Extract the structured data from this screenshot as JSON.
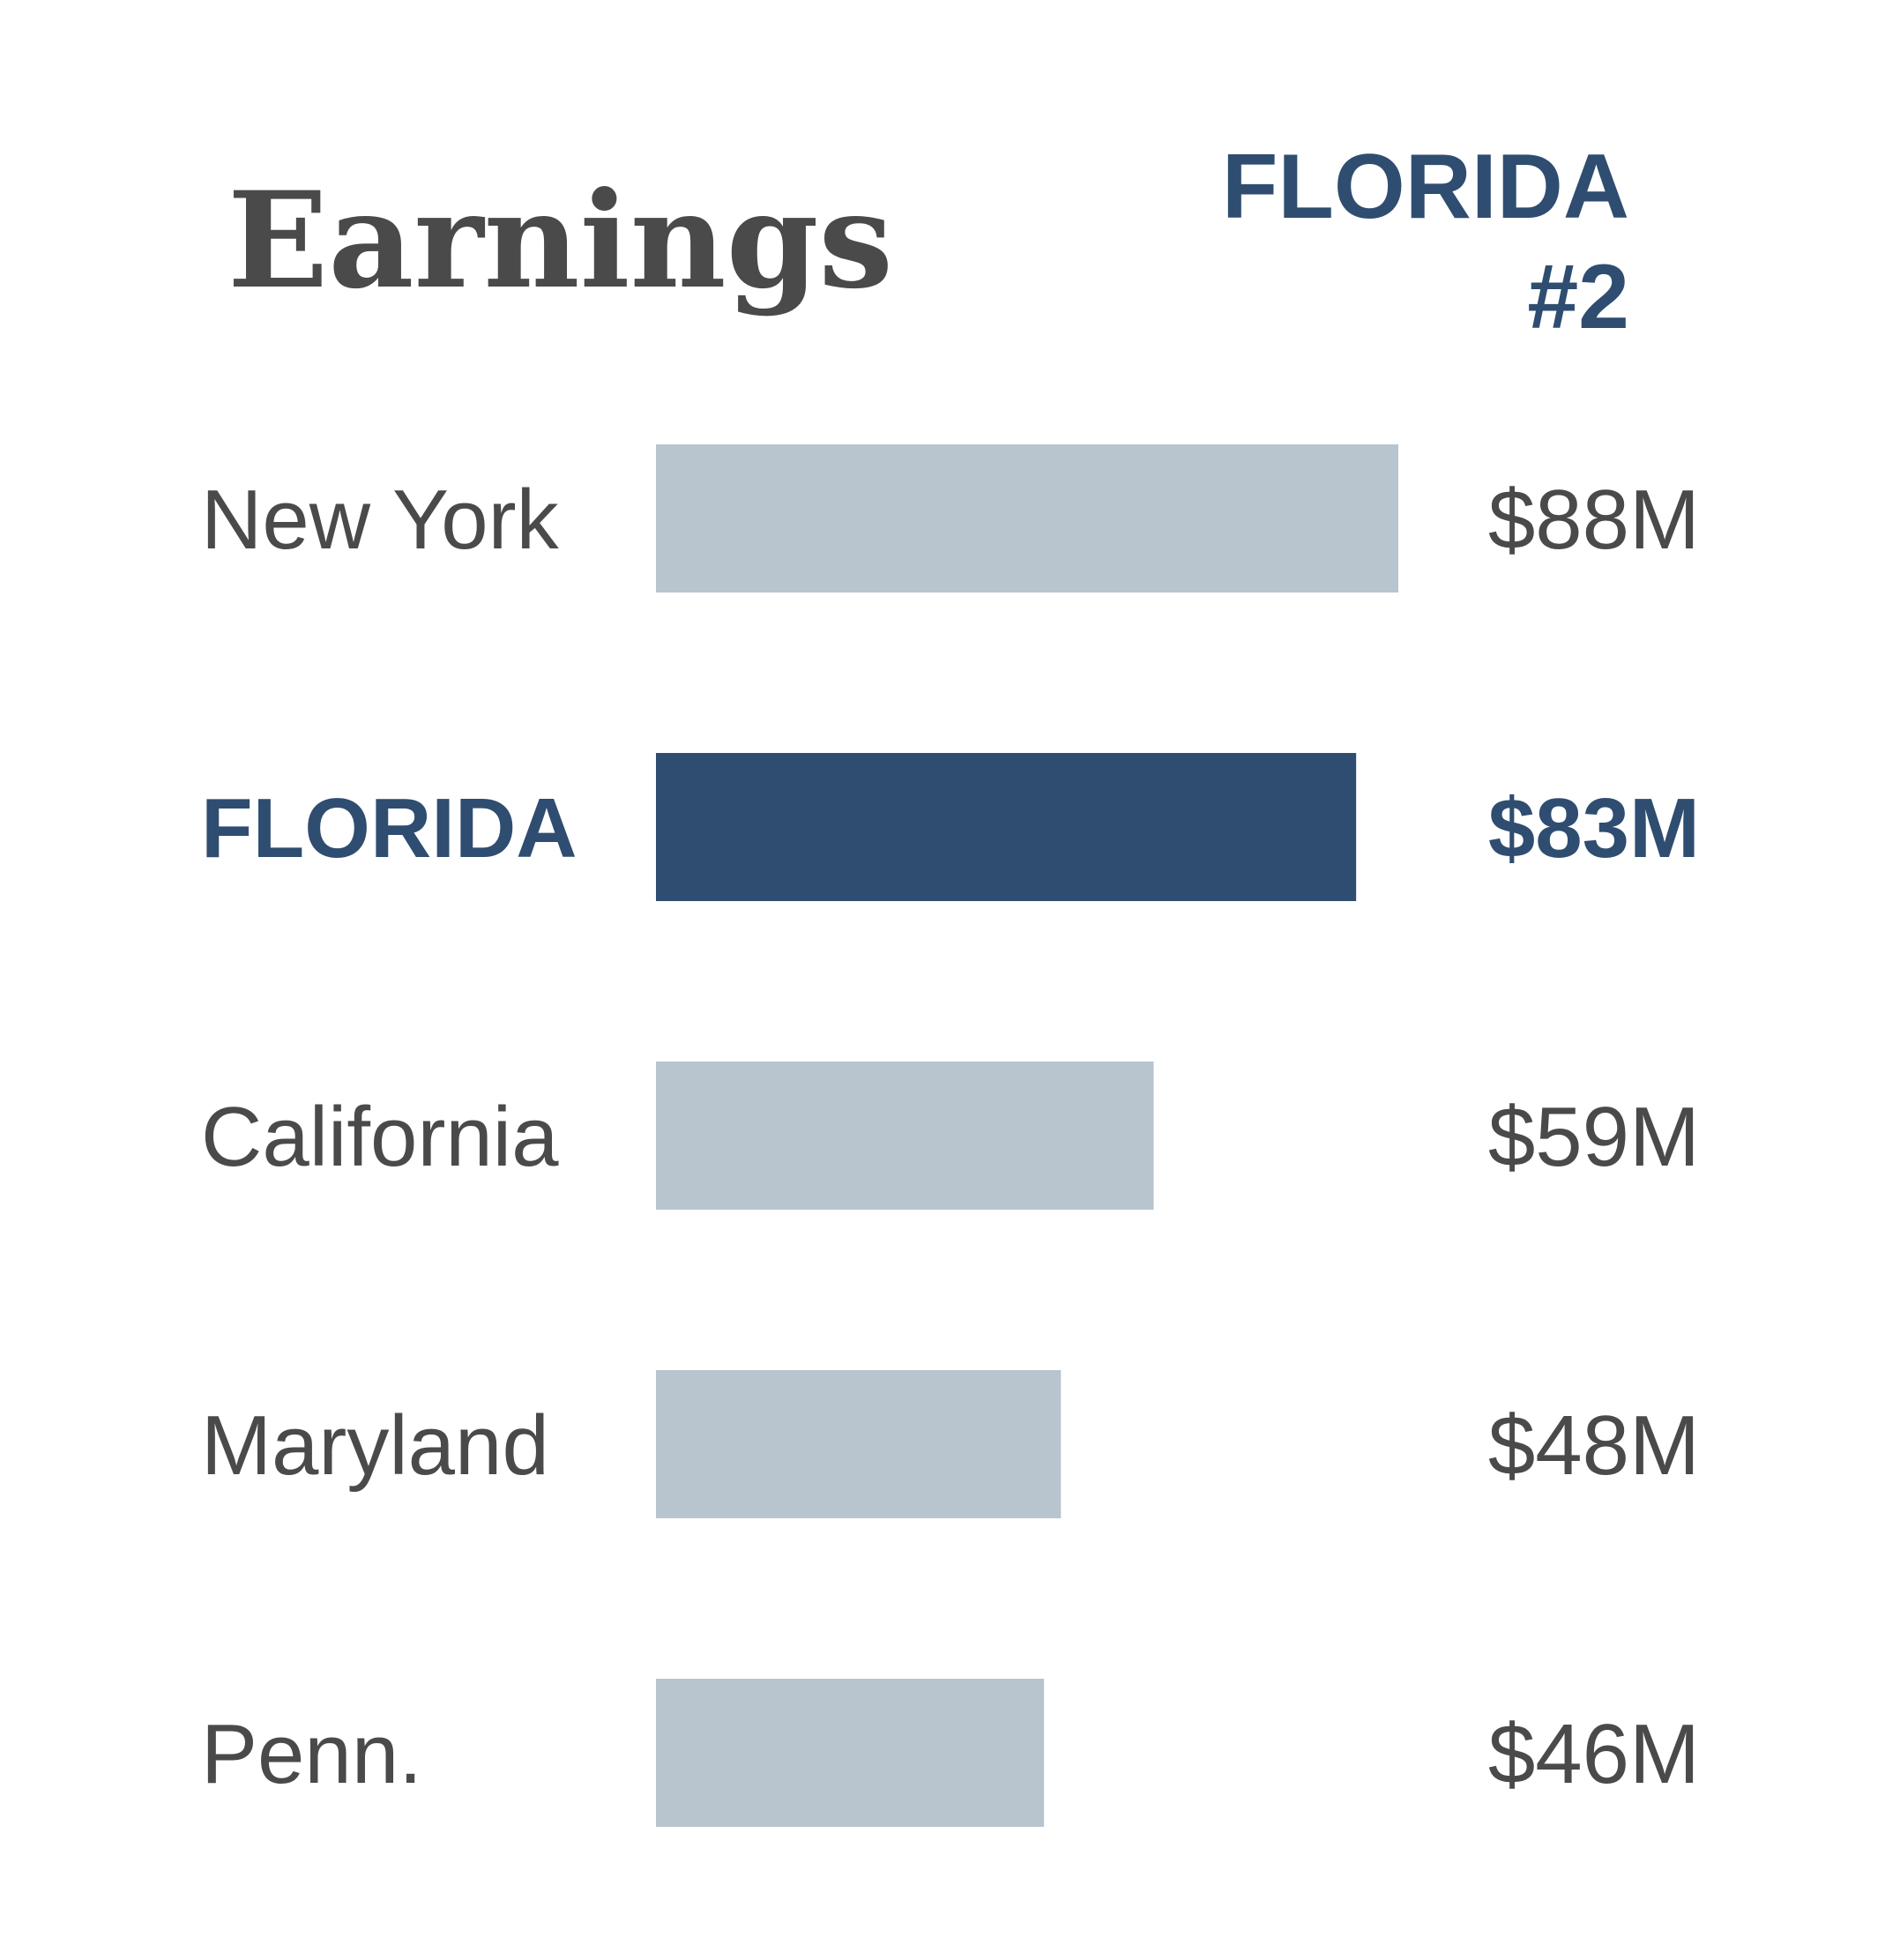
{
  "chart_data": {
    "type": "bar",
    "orientation": "horizontal",
    "title": "Earnings",
    "highlight_badge": {
      "line1": "FLORIDA",
      "line2": "#2"
    },
    "categories": [
      "New York",
      "FLORIDA",
      "California",
      "Maryland",
      "Penn."
    ],
    "values": [
      88,
      83,
      59,
      48,
      46
    ],
    "value_labels": [
      "$88M",
      "$83M",
      "$59M",
      "$48M",
      "$46M"
    ],
    "unit": "$M",
    "highlight_index": 1,
    "xlim": [
      0,
      88
    ],
    "grid": false,
    "legend": "none",
    "colors": {
      "bar": "#b8c4ce",
      "highlight": "#2f4d70",
      "text": "#4a4a4a"
    }
  }
}
